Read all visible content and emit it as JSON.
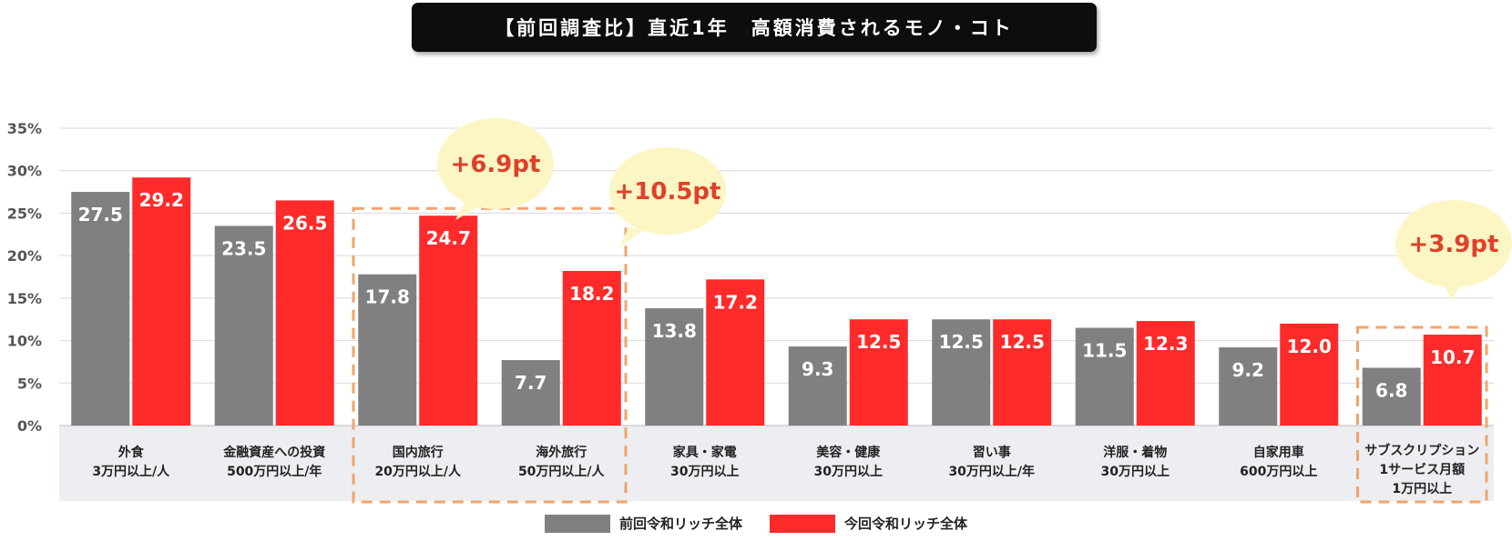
{
  "title": "【前回調査比】直近1年　高額消費されるモノ・コト",
  "legend": [
    {
      "label": "前回令和リッチ全体",
      "color": "#808080"
    },
    {
      "label": "今回令和リッチ全体",
      "color": "#ff2a2a"
    }
  ],
  "chart_data": {
    "type": "bar",
    "title": "【前回調査比】直近1年　高額消費されるモノ・コト",
    "categories": [
      [
        "外食",
        "3万円以上/人"
      ],
      [
        "金融資産への投資",
        "500万円以上/年"
      ],
      [
        "国内旅行",
        "20万円以上/人"
      ],
      [
        "海外旅行",
        "50万円以上/人"
      ],
      [
        "家具・家電",
        "30万円以上"
      ],
      [
        "美容・健康",
        "30万円以上"
      ],
      [
        "習い事",
        "30万円以上/年"
      ],
      [
        "洋服・着物",
        "30万円以上"
      ],
      [
        "自家用車",
        "600万円以上"
      ],
      [
        "サブスクリプション",
        "1サービス月額",
        "1万円以上"
      ]
    ],
    "series": [
      {
        "name": "前回令和リッチ全体",
        "color": "#808080",
        "values": [
          27.5,
          23.5,
          17.8,
          7.7,
          13.8,
          9.3,
          12.5,
          11.5,
          9.2,
          6.8
        ]
      },
      {
        "name": "今回令和リッチ全体",
        "color": "#ff2a2a",
        "values": [
          29.2,
          26.5,
          24.7,
          18.2,
          17.2,
          12.5,
          12.5,
          12.3,
          12.0,
          10.7
        ]
      }
    ],
    "yticks": [
      "0%",
      "5%",
      "10%",
      "15%",
      "20%",
      "25%",
      "30%",
      "35%"
    ],
    "ylim": [
      0,
      35
    ],
    "grid": true,
    "legend_position": "bottom",
    "annotations": [
      {
        "text": "+6.9pt",
        "group": [
          2,
          2
        ]
      },
      {
        "text": "+10.5pt",
        "group": [
          3,
          3
        ]
      },
      {
        "text": "+3.9pt",
        "group": [
          9,
          9
        ]
      }
    ],
    "highlight_groups": [
      [
        2,
        3
      ],
      [
        9,
        9
      ]
    ]
  }
}
